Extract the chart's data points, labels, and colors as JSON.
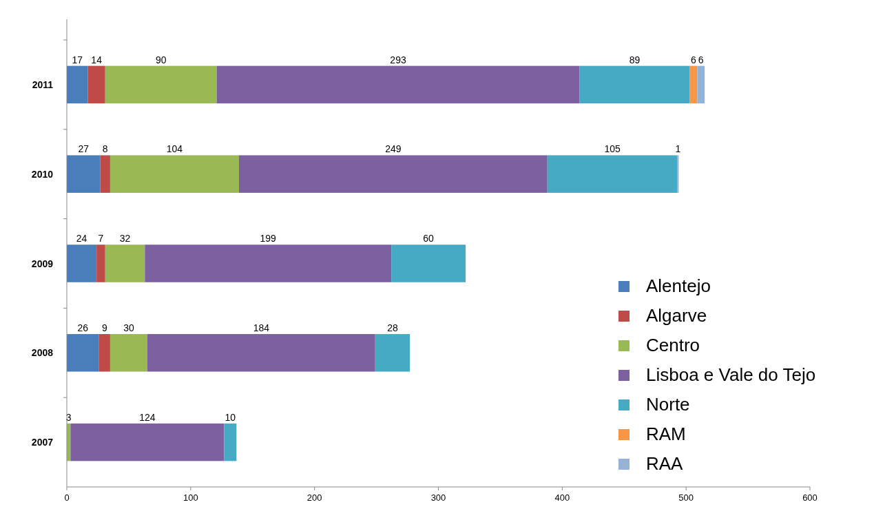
{
  "chart_data": {
    "type": "bar",
    "orientation": "horizontal",
    "stacked": true,
    "data_labels": true,
    "legend": "right",
    "grid": false,
    "categories": [
      "2011",
      "2010",
      "2009",
      "2008",
      "2007"
    ],
    "xlim": [
      0,
      600
    ],
    "xticks": [
      0,
      100,
      200,
      300,
      400,
      500,
      600
    ],
    "series": [
      {
        "name": "Alentejo",
        "color": "#4a7ebb",
        "values": [
          17,
          27,
          24,
          26,
          null
        ]
      },
      {
        "name": "Algarve",
        "color": "#be4b48",
        "values": [
          14,
          8,
          7,
          9,
          null
        ]
      },
      {
        "name": "Centro",
        "color": "#98b954",
        "values": [
          90,
          104,
          32,
          30,
          3
        ]
      },
      {
        "name": "Lisboa e Vale do Tejo",
        "color": "#7d60a0",
        "values": [
          293,
          249,
          199,
          184,
          124
        ]
      },
      {
        "name": "Norte",
        "color": "#46aac5",
        "values": [
          89,
          105,
          60,
          28,
          10
        ]
      },
      {
        "name": "RAM",
        "color": "#f79646",
        "values": [
          6,
          null,
          null,
          null,
          null
        ]
      },
      {
        "name": "RAA",
        "color": "#95b3d7",
        "values": [
          6,
          1,
          null,
          null,
          null
        ]
      }
    ]
  }
}
